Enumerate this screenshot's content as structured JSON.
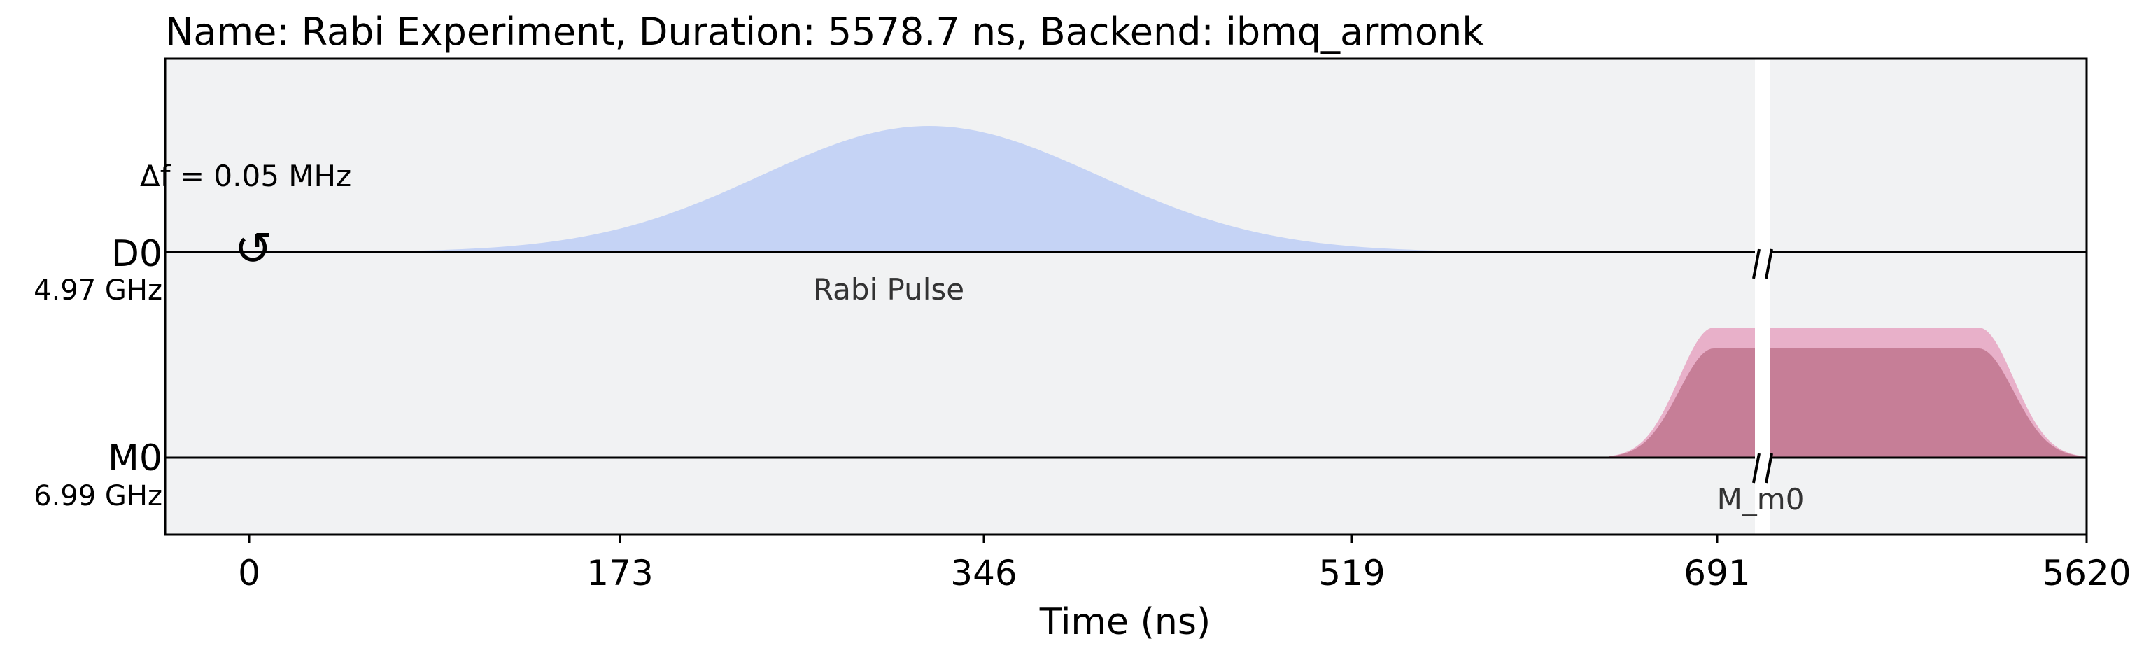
{
  "chart_data": {
    "type": "area",
    "title": "Name: Rabi Experiment, Duration: 5578.7 ns, Backend: ibmq_armonk",
    "xlabel": "Time (ns)",
    "ylabel": "",
    "xticks": [
      "0",
      "173",
      "346",
      "519",
      "691",
      "5620"
    ],
    "axis_break": {
      "after_tick": "691",
      "symbol": "//"
    },
    "grid": false,
    "colors": {
      "background": "#f1f2f3",
      "drive_pulse": "#c5d3f5",
      "measure_outer": "#e8b0c9",
      "measure_inner": "#c67e97",
      "baseline": "#000000"
    },
    "channels": [
      {
        "name": "D0",
        "frequency": "4.97 GHz",
        "frame_change": {
          "symbol": "↺",
          "t": 0,
          "label": "Δf = 0.05 MHz"
        },
        "pulses": [
          {
            "name": "Rabi Pulse",
            "shape": "gaussian",
            "t_start": 0,
            "t_end": 640,
            "center": 320,
            "sigma": 80,
            "amplitude": 0.6
          }
        ]
      },
      {
        "name": "M0",
        "frequency": "6.99 GHz",
        "pulses": [
          {
            "name": "M_m0",
            "shape": "gaussian_square",
            "t_start": 640,
            "t_end": 5580,
            "amplitude_outer": 0.62,
            "amplitude_inner": 0.52
          }
        ]
      }
    ]
  }
}
